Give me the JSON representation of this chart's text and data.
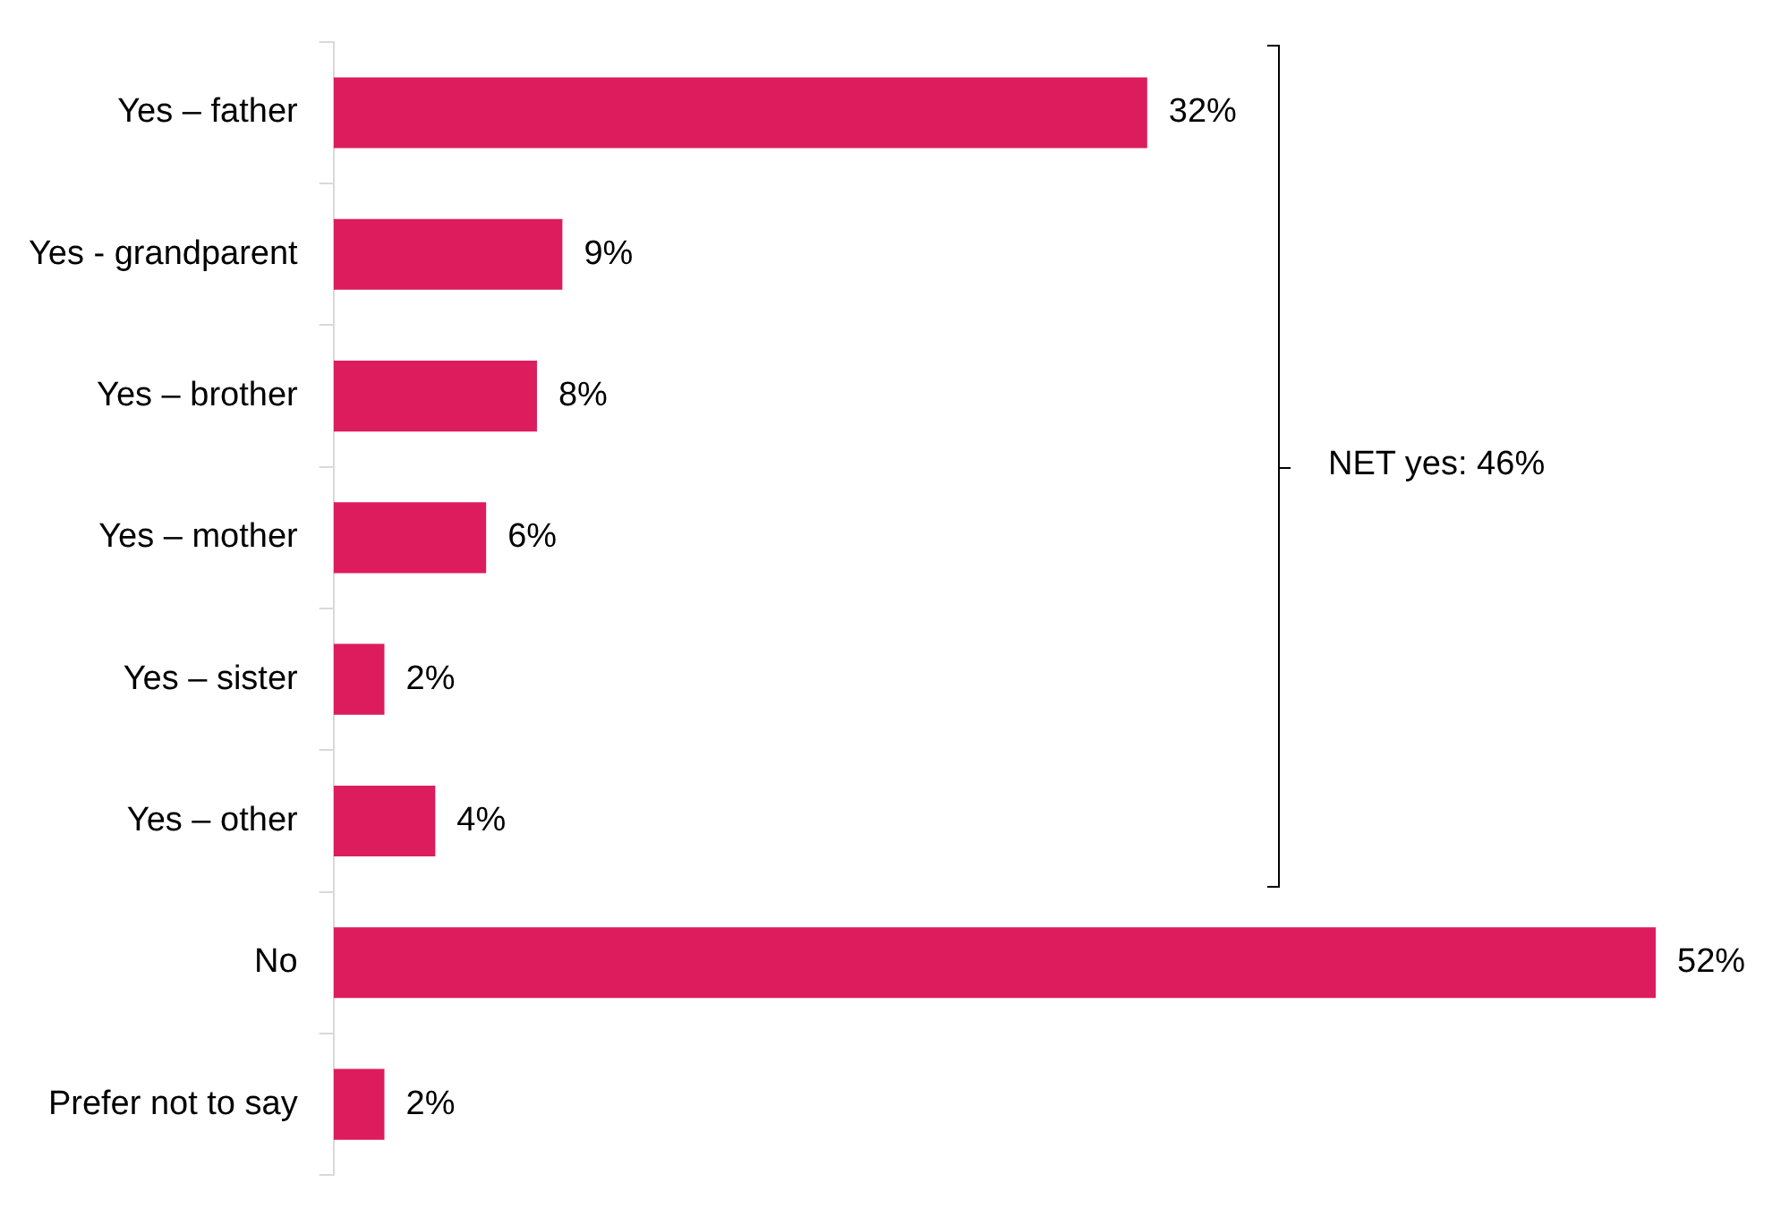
{
  "chart_data": {
    "type": "bar",
    "orientation": "horizontal",
    "categories": [
      "Yes – father",
      "Yes - grandparent",
      "Yes – brother",
      "Yes – mother",
      "Yes – sister",
      "Yes – other",
      "No",
      "Prefer not to say"
    ],
    "values": [
      32,
      9,
      8,
      6,
      2,
      4,
      52,
      2
    ],
    "value_labels": [
      "32%",
      "9%",
      "8%",
      "6%",
      "2%",
      "4%",
      "52%",
      "2%"
    ],
    "color": "#dc1c5c",
    "xlim": [
      0,
      52
    ],
    "tick_labels": "y",
    "grid": false,
    "legend": false,
    "annotations": [
      "NET yes: 46%"
    ]
  }
}
